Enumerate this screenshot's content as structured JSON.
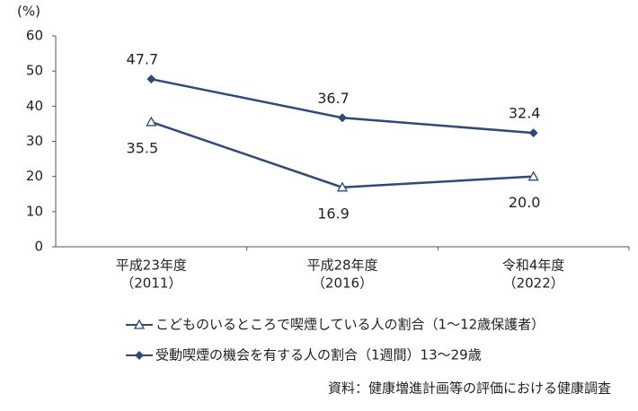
{
  "chart_data": {
    "type": "line",
    "y_label": "(%)",
    "categories": [
      [
        "平成23年度",
        "（2011）"
      ],
      [
        "平成28年度",
        "（2016）"
      ],
      [
        "令和4年度",
        "（2022）"
      ]
    ],
    "series": [
      {
        "name": "こどものいるところで喫煙している人の割合（1～12歳保護者）",
        "color": "#2e4a7a",
        "marker": "triangle",
        "values": [
          35.5,
          16.9,
          20.0
        ],
        "value_labels": [
          "35.5",
          "16.9",
          "20.0"
        ]
      },
      {
        "name": "受動喫煙の機会を有する人の割合（1週間）13～29歳",
        "color": "#2e4a7a",
        "marker": "diamond",
        "values": [
          47.7,
          36.7,
          32.4
        ],
        "value_labels": [
          "47.7",
          "36.7",
          "32.4"
        ]
      }
    ],
    "ylim": [
      0,
      60
    ],
    "yticks": [
      0,
      10,
      20,
      30,
      40,
      50,
      60
    ],
    "grid": false,
    "source": "資料：健康増進計画等の評価における健康調査"
  }
}
